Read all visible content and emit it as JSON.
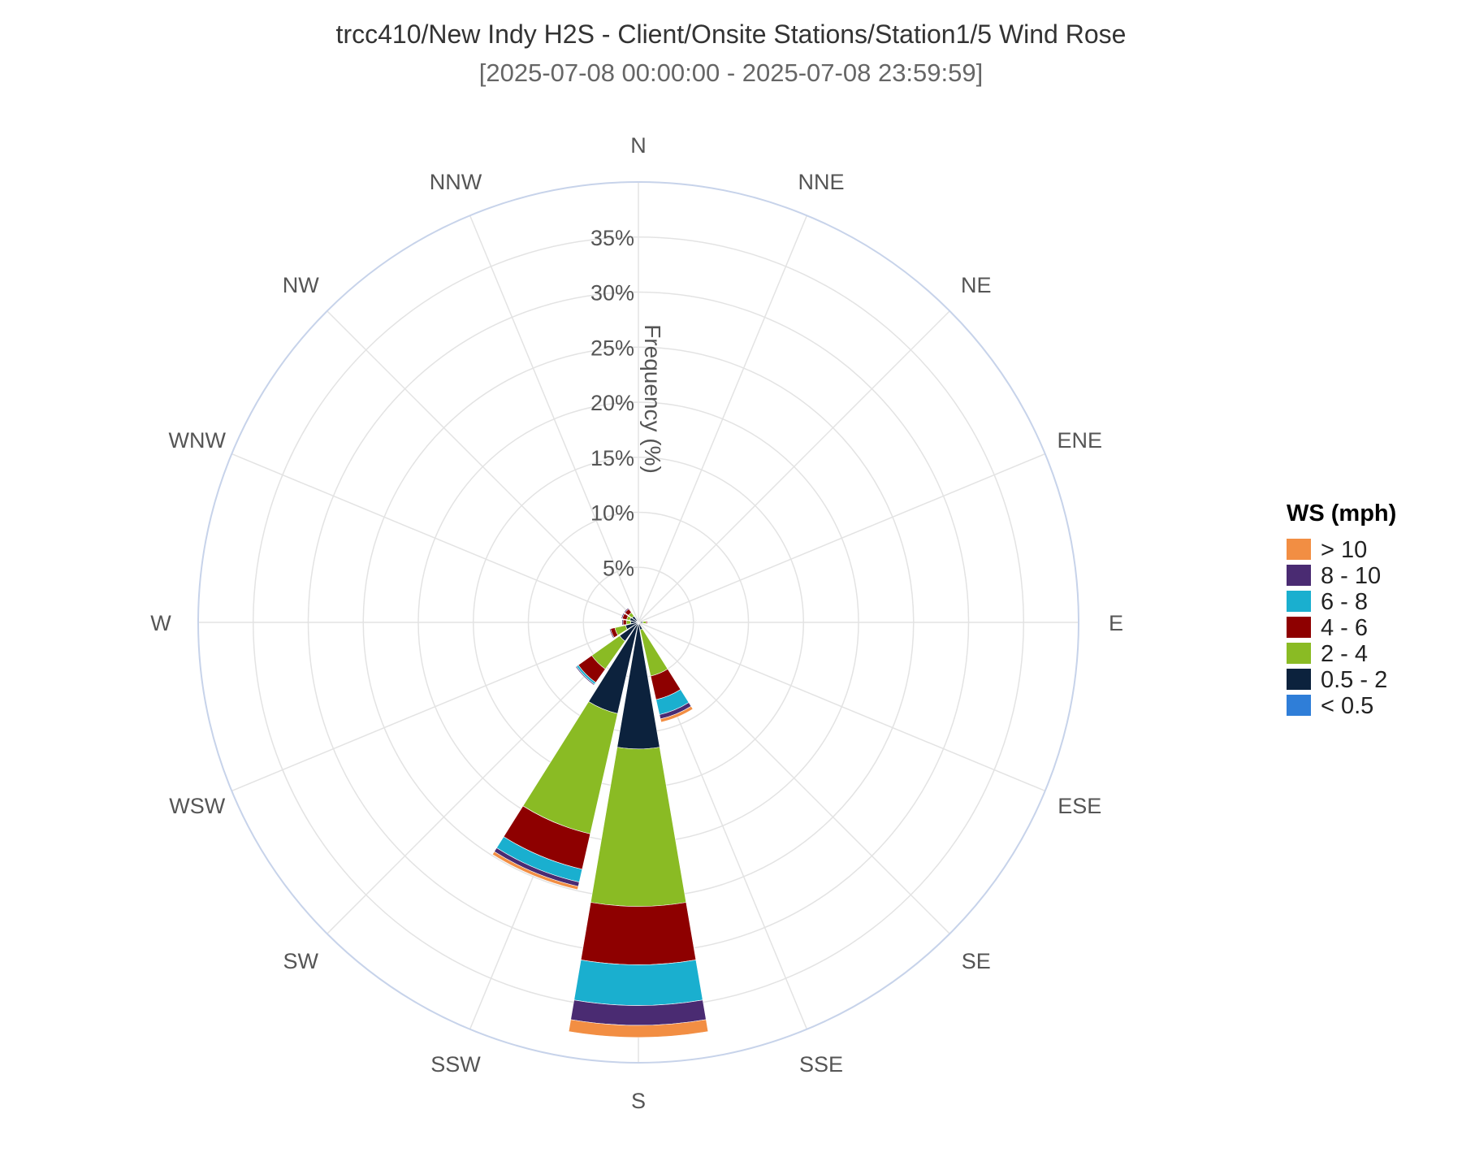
{
  "chart_data": {
    "type": "windrose",
    "title": "trcc410/New Indy H2S - Client/Onsite Stations/Station1/5 Wind Rose",
    "subtitle": "[2025-07-08 00:00:00 - 2025-07-08 23:59:59]",
    "radial_axis_title": "Frequency (%)",
    "radial_ticks": [
      "5%",
      "10%",
      "15%",
      "20%",
      "25%",
      "30%",
      "35%"
    ],
    "radial_range": [
      0,
      40
    ],
    "grid": true,
    "legend_placement": "right",
    "directions": [
      "N",
      "NNE",
      "NE",
      "ENE",
      "E",
      "ESE",
      "SE",
      "SSE",
      "S",
      "SSW",
      "SW",
      "WSW",
      "W",
      "WNW",
      "NW",
      "NNW"
    ],
    "legend": {
      "title": "WS (mph)",
      "items": [
        {
          "label": "> 10",
          "color": "#F28E43"
        },
        {
          "label": "8 - 10",
          "color": "#4A2B72"
        },
        {
          "label": "6 - 8",
          "color": "#1AAFCF"
        },
        {
          "label": "4 - 6",
          "color": "#8E0000"
        },
        {
          "label": "2 - 4",
          "color": "#8ABB24"
        },
        {
          "label": "0.5 - 2",
          "color": "#0C223D"
        },
        {
          "label": "< 0.5",
          "color": "#2F7ED8"
        }
      ]
    },
    "stack_order": [
      "< 0.5",
      "0.5 - 2",
      "2 - 4",
      "4 - 6",
      "6 - 8",
      "8 - 10",
      "> 10"
    ],
    "series": [
      {
        "name": "< 0.5",
        "color": "#2F7ED8",
        "values": [
          0,
          0,
          0,
          0,
          0,
          0,
          0,
          0,
          0,
          0,
          0,
          0,
          0,
          0.2,
          0,
          0
        ]
      },
      {
        "name": "0.5 - 2",
        "color": "#0C223D",
        "values": [
          0,
          0,
          0,
          0,
          0.4,
          0,
          0,
          0.7,
          11.5,
          8.5,
          2.1,
          1.2,
          0.7,
          0.6,
          0.7,
          0
        ]
      },
      {
        "name": "2 - 4",
        "color": "#8ABB24",
        "values": [
          0,
          0,
          0,
          0,
          0.3,
          0,
          0,
          4.3,
          14.3,
          11.2,
          3.1,
          1.0,
          0.4,
          0.3,
          0.4,
          0
        ]
      },
      {
        "name": "4 - 6",
        "color": "#8E0000",
        "values": [
          0,
          0,
          0,
          0,
          0.1,
          0,
          0,
          2.2,
          5.3,
          3.3,
          1.5,
          0.4,
          0.3,
          0.4,
          0.4,
          0
        ]
      },
      {
        "name": "6 - 8",
        "color": "#1AAFCF",
        "values": [
          0,
          0,
          0,
          0,
          0,
          0,
          0,
          1.4,
          3.7,
          1.2,
          0.2,
          0,
          0,
          0,
          0,
          0
        ]
      },
      {
        "name": "8 - 10",
        "color": "#4A2B72",
        "values": [
          0,
          0,
          0,
          0,
          0,
          0,
          0,
          0.4,
          1.8,
          0.4,
          0.1,
          0.1,
          0.1,
          0.1,
          0.1,
          0
        ]
      },
      {
        "name": "> 10",
        "color": "#F28E43",
        "values": [
          0,
          0,
          0,
          0,
          0,
          0,
          0,
          0.3,
          1.1,
          0.3,
          0,
          0,
          0,
          0,
          0,
          0
        ]
      }
    ]
  }
}
